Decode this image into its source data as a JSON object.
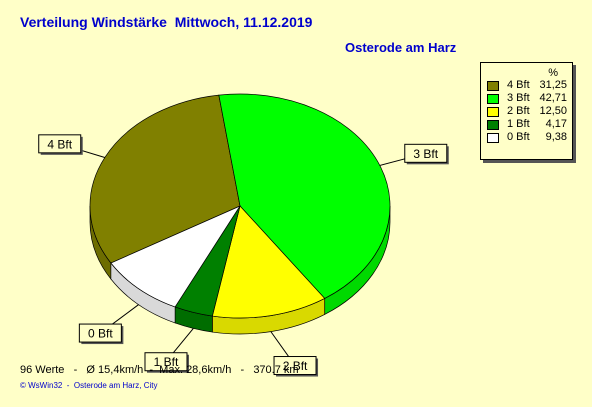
{
  "title": "Verteilung Windstärke  Mittwoch, 11.12.2019",
  "location": "Osterode am Harz",
  "legend_unit": "%",
  "footer": "96 Werte   -   Ø 15,4km/h  -  Max. 28,6km/h   -   370.7 km",
  "credit": "© WsWin32  -  Osterode am Harz, City",
  "chart_data": {
    "type": "pie",
    "slices": [
      {
        "label": "4 Bft",
        "value": 31.25,
        "display": "31,25",
        "color": "#808000"
      },
      {
        "label": "3 Bft",
        "value": 42.71,
        "display": "42,71",
        "color": "#00ff00"
      },
      {
        "label": "2 Bft",
        "value": 12.5,
        "display": "12,50",
        "color": "#ffff00"
      },
      {
        "label": "1 Bft",
        "value": 4.17,
        "display": "4,17",
        "color": "#008000"
      },
      {
        "label": "0 Bft",
        "value": 9.38,
        "display": "9,38",
        "color": "#ffffff"
      }
    ]
  }
}
